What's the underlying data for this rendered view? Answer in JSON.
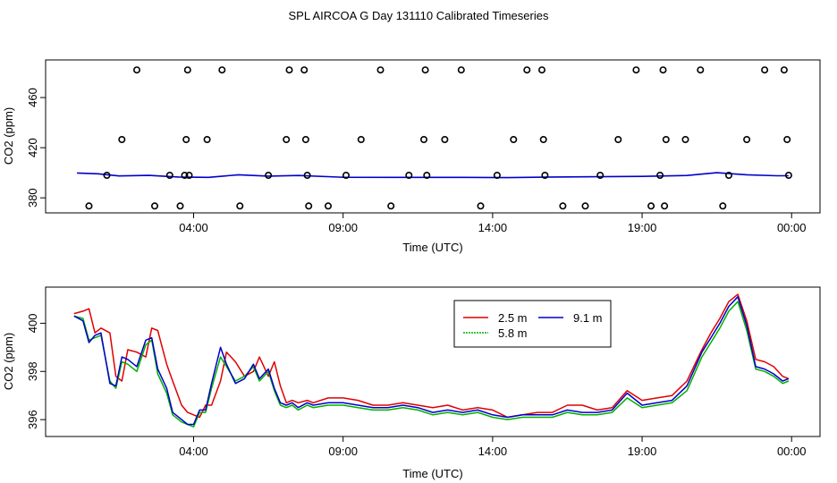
{
  "title": "SPL AIRCOA G  Day 131110  Calibrated Timeseries",
  "chart_data": [
    {
      "type": "line+scatter",
      "xlabel": "Time (UTC)",
      "ylabel": "CO2 (ppm)",
      "xticks": [
        {
          "hour": 4,
          "label": "04:00"
        },
        {
          "hour": 9,
          "label": "09:00"
        },
        {
          "hour": 14,
          "label": "14:00"
        },
        {
          "hour": 19,
          "label": "19:00"
        },
        {
          "hour": 24,
          "label": "00:00"
        }
      ],
      "yticks": [
        {
          "value": 380,
          "label": "380"
        },
        {
          "value": 420,
          "label": "420"
        },
        {
          "value": 460,
          "label": "460"
        }
      ],
      "xlim": [
        -0.95,
        24.95
      ],
      "ylim": [
        368,
        490
      ],
      "line": {
        "name": "CO2",
        "color": "#0000cc",
        "x": [
          0.1,
          0.8,
          1.5,
          2.5,
          3.5,
          4.5,
          5.5,
          6.5,
          7.5,
          9,
          11,
          13,
          14.5,
          16,
          17.5,
          19,
          20.5,
          21.5,
          22.5,
          23.5,
          23.9
        ],
        "y": [
          399.8,
          399.2,
          397.5,
          397.9,
          396.6,
          396.3,
          398.4,
          397.3,
          397.8,
          396.4,
          396.3,
          396.3,
          396.1,
          396.6,
          396.8,
          397.1,
          397.8,
          400.0,
          398.4,
          397.6,
          397.6
        ]
      },
      "points": {
        "symbol": "open-circle",
        "x": [
          0.5,
          1.1,
          1.6,
          2.1,
          2.7,
          3.2,
          3.55,
          3.7,
          3.75,
          3.8,
          3.85,
          4.45,
          4.95,
          5.55,
          6.5,
          7.1,
          7.2,
          7.7,
          7.75,
          7.8,
          7.85,
          8.5,
          9.1,
          9.6,
          10.25,
          10.6,
          11.2,
          11.7,
          11.75,
          11.8,
          12.4,
          12.95,
          13.6,
          14.15,
          14.7,
          15.15,
          15.65,
          15.7,
          15.75,
          16.35,
          17.1,
          17.6,
          18.2,
          18.8,
          19.3,
          19.6,
          19.7,
          19.75,
          19.8,
          20.45,
          20.95,
          21.7,
          21.9,
          22.5,
          23.1,
          23.75,
          23.85,
          23.9
        ],
        "y": [
          373.5,
          398.0,
          426.5,
          482.0,
          373.5,
          398.0,
          373.5,
          398.0,
          426.5,
          482.0,
          398.0,
          426.5,
          482.0,
          373.5,
          398.0,
          426.5,
          482.0,
          482.0,
          426.5,
          398.0,
          373.5,
          373.5,
          398.0,
          426.5,
          482.0,
          373.5,
          398.0,
          426.5,
          482.0,
          398.0,
          426.5,
          482.0,
          373.5,
          398.0,
          426.5,
          482.0,
          482.0,
          426.5,
          398.0,
          373.5,
          373.5,
          398.0,
          426.5,
          482.0,
          373.5,
          398.0,
          482.0,
          373.5,
          426.5,
          426.5,
          482.0,
          373.5,
          398.0,
          426.5,
          482.0,
          482.0,
          426.5,
          398.0
        ]
      }
    },
    {
      "type": "line",
      "xlabel": "Time (UTC)",
      "ylabel": "CO2 (ppm)",
      "xticks": [
        {
          "hour": 4,
          "label": "04:00"
        },
        {
          "hour": 9,
          "label": "09:00"
        },
        {
          "hour": 14,
          "label": "14:00"
        },
        {
          "hour": 19,
          "label": "19:00"
        },
        {
          "hour": 24,
          "label": "00:00"
        }
      ],
      "yticks": [
        {
          "value": 396,
          "label": "396"
        },
        {
          "value": 398,
          "label": "398"
        },
        {
          "value": 400,
          "label": "400"
        }
      ],
      "xlim": [
        -0.95,
        24.95
      ],
      "ylim": [
        395.3,
        401.5
      ],
      "legend": {
        "placement": "top-center",
        "columns": 2
      },
      "series": [
        {
          "name": "2.5 m",
          "color": "#e00000",
          "x": [
            0,
            0.3,
            0.5,
            0.7,
            0.9,
            1.2,
            1.4,
            1.6,
            1.8,
            2.1,
            2.4,
            2.6,
            2.8,
            3.1,
            3.3,
            3.6,
            3.8,
            4.0,
            4.2,
            4.4,
            4.6,
            4.9,
            5.1,
            5.4,
            5.7,
            6.0,
            6.2,
            6.5,
            6.7,
            6.9,
            7.1,
            7.3,
            7.5,
            7.8,
            8.0,
            8.5,
            9.0,
            9.5,
            10,
            10.5,
            11,
            11.5,
            12,
            12.5,
            13,
            13.5,
            14,
            14.5,
            15,
            15.5,
            16,
            16.5,
            17,
            17.5,
            18,
            18.5,
            19,
            19.5,
            20,
            20.5,
            21,
            21.3,
            21.6,
            21.9,
            22.2,
            22.5,
            22.8,
            23.1,
            23.4,
            23.7,
            23.9
          ],
          "y": [
            400.4,
            400.5,
            400.6,
            399.6,
            399.8,
            399.6,
            397.8,
            397.6,
            398.9,
            398.8,
            398.6,
            399.8,
            399.7,
            398.3,
            397.6,
            396.6,
            396.3,
            396.2,
            396.1,
            396.6,
            396.6,
            397.6,
            398.8,
            398.4,
            397.8,
            398.0,
            398.6,
            397.8,
            398.4,
            397.4,
            396.7,
            396.8,
            396.7,
            396.8,
            396.7,
            396.9,
            396.9,
            396.8,
            396.6,
            396.6,
            396.7,
            396.6,
            396.5,
            396.6,
            396.4,
            396.5,
            396.4,
            396.1,
            396.2,
            396.3,
            396.3,
            396.6,
            396.6,
            396.4,
            396.5,
            397.2,
            396.8,
            396.9,
            397.0,
            397.6,
            398.9,
            399.6,
            400.2,
            400.9,
            401.2,
            400.1,
            398.5,
            398.4,
            398.2,
            397.8,
            397.7
          ]
        },
        {
          "name": "5.8 m",
          "color": "#00b000",
          "x": [
            0,
            0.3,
            0.5,
            0.7,
            0.9,
            1.2,
            1.4,
            1.6,
            1.8,
            2.1,
            2.4,
            2.6,
            2.8,
            3.1,
            3.3,
            3.6,
            3.8,
            4.0,
            4.2,
            4.4,
            4.6,
            4.9,
            5.1,
            5.4,
            5.7,
            6.0,
            6.2,
            6.5,
            6.7,
            6.9,
            7.1,
            7.3,
            7.5,
            7.8,
            8.0,
            8.5,
            9.0,
            9.5,
            10,
            10.5,
            11,
            11.5,
            12,
            12.5,
            13,
            13.5,
            14,
            14.5,
            15,
            15.5,
            16,
            16.5,
            17,
            17.5,
            18,
            18.5,
            19,
            19.5,
            20,
            20.5,
            21,
            21.3,
            21.6,
            21.9,
            22.2,
            22.5,
            22.8,
            23.1,
            23.4,
            23.7,
            23.9
          ],
          "y": [
            400.3,
            400.2,
            399.3,
            399.4,
            399.5,
            397.6,
            397.3,
            398.4,
            398.3,
            398.0,
            399.1,
            399.3,
            397.9,
            397.1,
            396.2,
            395.9,
            395.8,
            395.7,
            396.3,
            396.3,
            397.3,
            398.6,
            398.2,
            397.6,
            397.8,
            398.2,
            397.6,
            398.0,
            397.2,
            396.6,
            396.5,
            396.6,
            396.4,
            396.6,
            396.5,
            396.6,
            396.6,
            396.5,
            396.4,
            396.4,
            396.5,
            396.4,
            396.2,
            396.3,
            396.2,
            396.3,
            396.1,
            396.0,
            396.1,
            396.1,
            396.1,
            396.3,
            396.2,
            396.2,
            396.3,
            396.9,
            396.5,
            396.6,
            396.7,
            397.2,
            398.6,
            399.2,
            399.8,
            400.5,
            400.9,
            399.7,
            398.1,
            398.0,
            397.8,
            397.5,
            397.6
          ]
        },
        {
          "name": "9.1 m",
          "color": "#0000cc",
          "x": [
            0,
            0.3,
            0.5,
            0.7,
            0.9,
            1.2,
            1.4,
            1.6,
            1.8,
            2.1,
            2.4,
            2.6,
            2.8,
            3.1,
            3.3,
            3.6,
            3.8,
            4.0,
            4.2,
            4.4,
            4.6,
            4.9,
            5.1,
            5.4,
            5.7,
            6.0,
            6.2,
            6.5,
            6.7,
            6.9,
            7.1,
            7.3,
            7.5,
            7.8,
            8.0,
            8.5,
            9.0,
            9.5,
            10,
            10.5,
            11,
            11.5,
            12,
            12.5,
            13,
            13.5,
            14,
            14.5,
            15,
            15.5,
            16,
            16.5,
            17,
            17.5,
            18,
            18.5,
            19,
            19.5,
            20,
            20.5,
            21,
            21.3,
            21.6,
            21.9,
            22.2,
            22.5,
            22.8,
            23.1,
            23.4,
            23.7,
            23.9
          ],
          "y": [
            400.3,
            400.1,
            399.2,
            399.5,
            399.6,
            397.5,
            397.4,
            398.6,
            398.5,
            398.2,
            399.3,
            399.4,
            398.1,
            397.3,
            396.3,
            396.0,
            395.8,
            395.8,
            396.4,
            396.4,
            397.5,
            399.0,
            398.3,
            397.5,
            397.7,
            398.3,
            397.7,
            398.1,
            397.3,
            396.7,
            396.6,
            396.7,
            396.5,
            396.7,
            396.6,
            396.7,
            396.7,
            396.6,
            396.5,
            396.5,
            396.6,
            396.5,
            396.3,
            396.4,
            396.3,
            396.4,
            396.2,
            396.1,
            396.2,
            396.2,
            396.2,
            396.4,
            396.3,
            396.3,
            396.4,
            397.1,
            396.6,
            396.7,
            396.8,
            397.4,
            398.8,
            399.4,
            400.0,
            400.7,
            401.1,
            399.9,
            398.2,
            398.1,
            397.9,
            397.6,
            397.7
          ]
        }
      ]
    }
  ]
}
